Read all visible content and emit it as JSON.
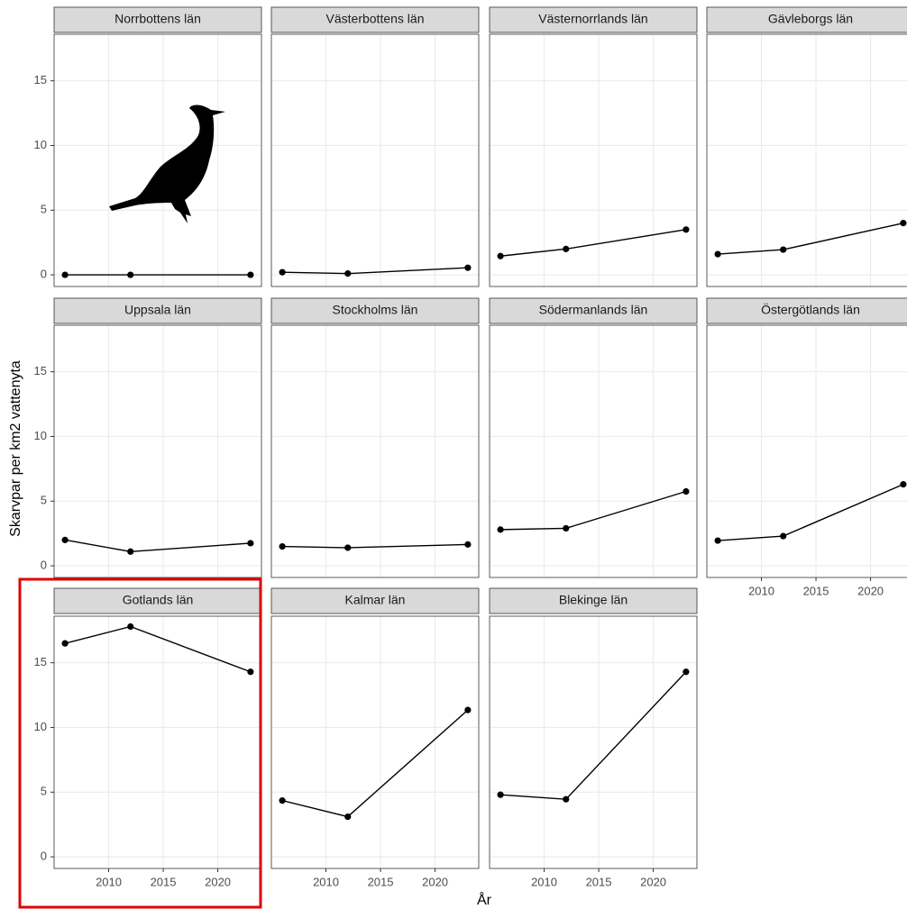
{
  "y_label": "Skarvpar per km2 vattenyta",
  "x_label": "År",
  "chart_data": [
    {
      "type": "line",
      "title": "Norrbottens län",
      "x": [
        2006,
        2012,
        2023
      ],
      "values": [
        0,
        0,
        0
      ],
      "color": "#000000",
      "xlim": [
        2005,
        2024
      ],
      "ylim": [
        -0.9,
        18.6
      ],
      "xticks": [
        2010,
        2015,
        2020
      ],
      "yticks": [
        0,
        5,
        10,
        15
      ],
      "grid": true
    },
    {
      "type": "line",
      "title": "Västerbottens län",
      "x": [
        2006,
        2012,
        2023
      ],
      "values": [
        0.2,
        0.1,
        0.55
      ],
      "color": "#000000",
      "xlim": [
        2005,
        2024
      ],
      "ylim": [
        -0.9,
        18.6
      ],
      "xticks": [
        2010,
        2015,
        2020
      ],
      "yticks": [
        0,
        5,
        10,
        15
      ],
      "grid": true
    },
    {
      "type": "line",
      "title": "Västernorrlands län",
      "x": [
        2006,
        2012,
        2023
      ],
      "values": [
        1.45,
        2.0,
        3.5
      ],
      "color": "#000000",
      "xlim": [
        2005,
        2024
      ],
      "ylim": [
        -0.9,
        18.6
      ],
      "xticks": [
        2010,
        2015,
        2020
      ],
      "yticks": [
        0,
        5,
        10,
        15
      ],
      "grid": true
    },
    {
      "type": "line",
      "title": "Gävleborgs län",
      "x": [
        2006,
        2012,
        2023
      ],
      "values": [
        1.6,
        1.95,
        4.0
      ],
      "color": "#000000",
      "xlim": [
        2005,
        2024
      ],
      "ylim": [
        -0.9,
        18.6
      ],
      "xticks": [
        2010,
        2015,
        2020
      ],
      "yticks": [
        0,
        5,
        10,
        15
      ],
      "grid": true
    },
    {
      "type": "line",
      "title": "Uppsala län",
      "x": [
        2006,
        2012,
        2023
      ],
      "values": [
        2.0,
        1.1,
        1.75
      ],
      "color": "#000000",
      "xlim": [
        2005,
        2024
      ],
      "ylim": [
        -0.9,
        18.6
      ],
      "xticks": [
        2010,
        2015,
        2020
      ],
      "yticks": [
        0,
        5,
        10,
        15
      ],
      "grid": true
    },
    {
      "type": "line",
      "title": "Stockholms län",
      "x": [
        2006,
        2012,
        2023
      ],
      "values": [
        1.5,
        1.4,
        1.65
      ],
      "color": "#000000",
      "xlim": [
        2005,
        2024
      ],
      "ylim": [
        -0.9,
        18.6
      ],
      "xticks": [
        2010,
        2015,
        2020
      ],
      "yticks": [
        0,
        5,
        10,
        15
      ],
      "grid": true
    },
    {
      "type": "line",
      "title": "Södermanlands län",
      "x": [
        2006,
        2012,
        2023
      ],
      "values": [
        2.8,
        2.9,
        5.75
      ],
      "color": "#000000",
      "xlim": [
        2005,
        2024
      ],
      "ylim": [
        -0.9,
        18.6
      ],
      "xticks": [
        2010,
        2015,
        2020
      ],
      "yticks": [
        0,
        5,
        10,
        15
      ],
      "grid": true
    },
    {
      "type": "line",
      "title": "Östergötlands län",
      "x": [
        2006,
        2012,
        2023
      ],
      "values": [
        1.95,
        2.3,
        6.3
      ],
      "color": "#000000",
      "xlim": [
        2005,
        2024
      ],
      "ylim": [
        -0.9,
        18.6
      ],
      "xticks": [
        2010,
        2015,
        2020
      ],
      "yticks": [
        0,
        5,
        10,
        15
      ],
      "grid": true
    },
    {
      "type": "line",
      "title": "Gotlands län",
      "x": [
        2006,
        2012,
        2023
      ],
      "values": [
        16.5,
        17.8,
        14.3
      ],
      "color": "#000000",
      "xlim": [
        2005,
        2024
      ],
      "ylim": [
        -0.9,
        18.6
      ],
      "xticks": [
        2010,
        2015,
        2020
      ],
      "yticks": [
        0,
        5,
        10,
        15
      ],
      "grid": true
    },
    {
      "type": "line",
      "title": "Kalmar län",
      "x": [
        2006,
        2012,
        2023
      ],
      "values": [
        4.35,
        3.1,
        11.35
      ],
      "color": "#000000",
      "xlim": [
        2005,
        2024
      ],
      "ylim": [
        -0.9,
        18.6
      ],
      "xticks": [
        2010,
        2015,
        2020
      ],
      "yticks": [
        0,
        5,
        10,
        15
      ],
      "grid": true
    },
    {
      "type": "line",
      "title": "Blekinge län",
      "x": [
        2006,
        2012,
        2023
      ],
      "values": [
        4.8,
        4.45,
        14.3
      ],
      "color": "#000000",
      "xlim": [
        2005,
        2024
      ],
      "ylim": [
        -0.9,
        18.6
      ],
      "xticks": [
        2010,
        2015,
        2020
      ],
      "yticks": [
        0,
        5,
        10,
        15
      ],
      "grid": true
    }
  ]
}
